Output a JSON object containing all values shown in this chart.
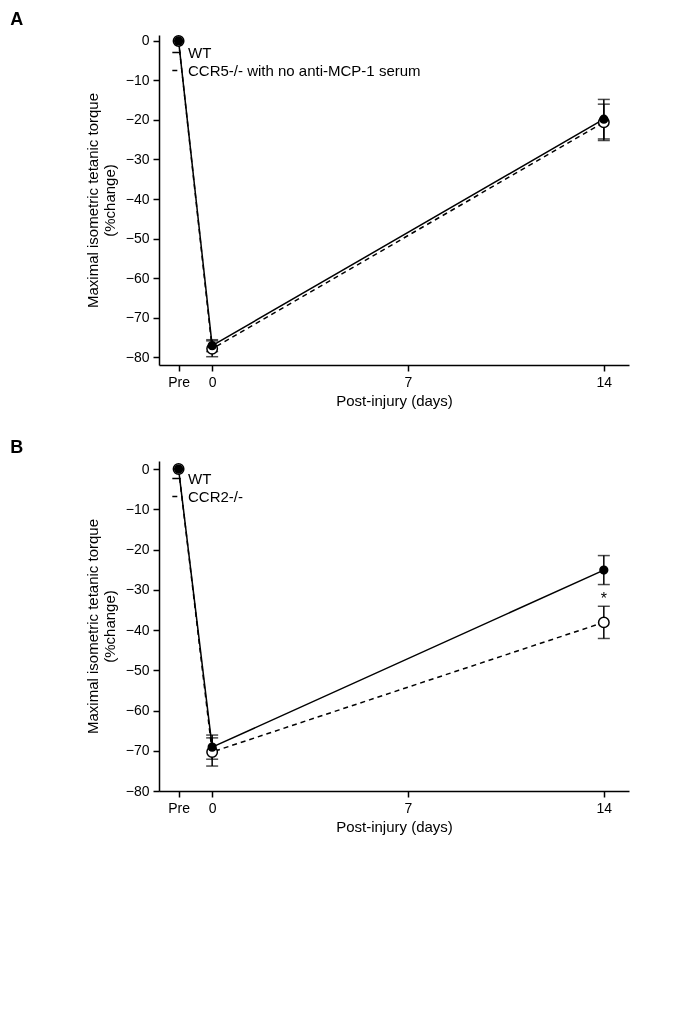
{
  "chart_data": [
    {
      "type": "line",
      "title": "A",
      "xlabel": "Post-injury (days)",
      "ylabel": "Maximal isometric tetanic torque\n(%change)",
      "xlim": [
        -1.9,
        14.9
      ],
      "ylim": [
        -82,
        1.5
      ],
      "xticks": [
        {
          "value": -1.2,
          "label": "Pre"
        },
        0,
        7,
        14
      ],
      "yticks": [
        0,
        -10,
        -20,
        -30,
        -40,
        -50,
        -60,
        -70,
        -80
      ],
      "legend": "top left",
      "grid": false,
      "marker": "circle",
      "series": [
        {
          "name": "WT",
          "color": "#000000",
          "line_style": "solid",
          "x": [
            -1.2,
            0,
            14
          ],
          "values": [
            0,
            -77.1,
            -19.8
          ],
          "errors": [
            null,
            1.5,
            5
          ]
        },
        {
          "name": "CCR5-/- with no anti-MCP-1 serum",
          "color": "#000000",
          "line_style": "dashed",
          "x": [
            -1.2,
            0,
            14
          ],
          "values": [
            0,
            -77.9,
            -20.6
          ],
          "errors": [
            null,
            2,
            4.6
          ]
        }
      ]
    },
    {
      "type": "line",
      "title": "B",
      "xlabel": "Post-injury (days)",
      "ylabel": "Maximal isometric tetanic torque\n(%change)",
      "xlim": [
        -1.9,
        14.9
      ],
      "ylim": [
        -80,
        2
      ],
      "xticks": [
        {
          "value": -1.2,
          "label": "Pre"
        },
        0,
        7,
        14
      ],
      "yticks": [
        0,
        -10,
        -20,
        -30,
        -40,
        -50,
        -60,
        -70,
        -80
      ],
      "legend": "top left",
      "grid": false,
      "marker": "circle",
      "annotations": [
        "*"
      ],
      "series": [
        {
          "name": "WT",
          "color": "#000000",
          "line_style": "solid",
          "x": [
            -1.2,
            0,
            14
          ],
          "values": [
            0,
            -69.1,
            -25.1
          ],
          "errors": [
            null,
            3,
            3.6
          ]
        },
        {
          "name": "CCR2-/-",
          "color": "#000000",
          "line_style": "dashed",
          "x": [
            -1.2,
            0,
            14
          ],
          "values": [
            0,
            -70.3,
            -38.1
          ],
          "errors": [
            null,
            3.5,
            4
          ]
        }
      ]
    }
  ]
}
